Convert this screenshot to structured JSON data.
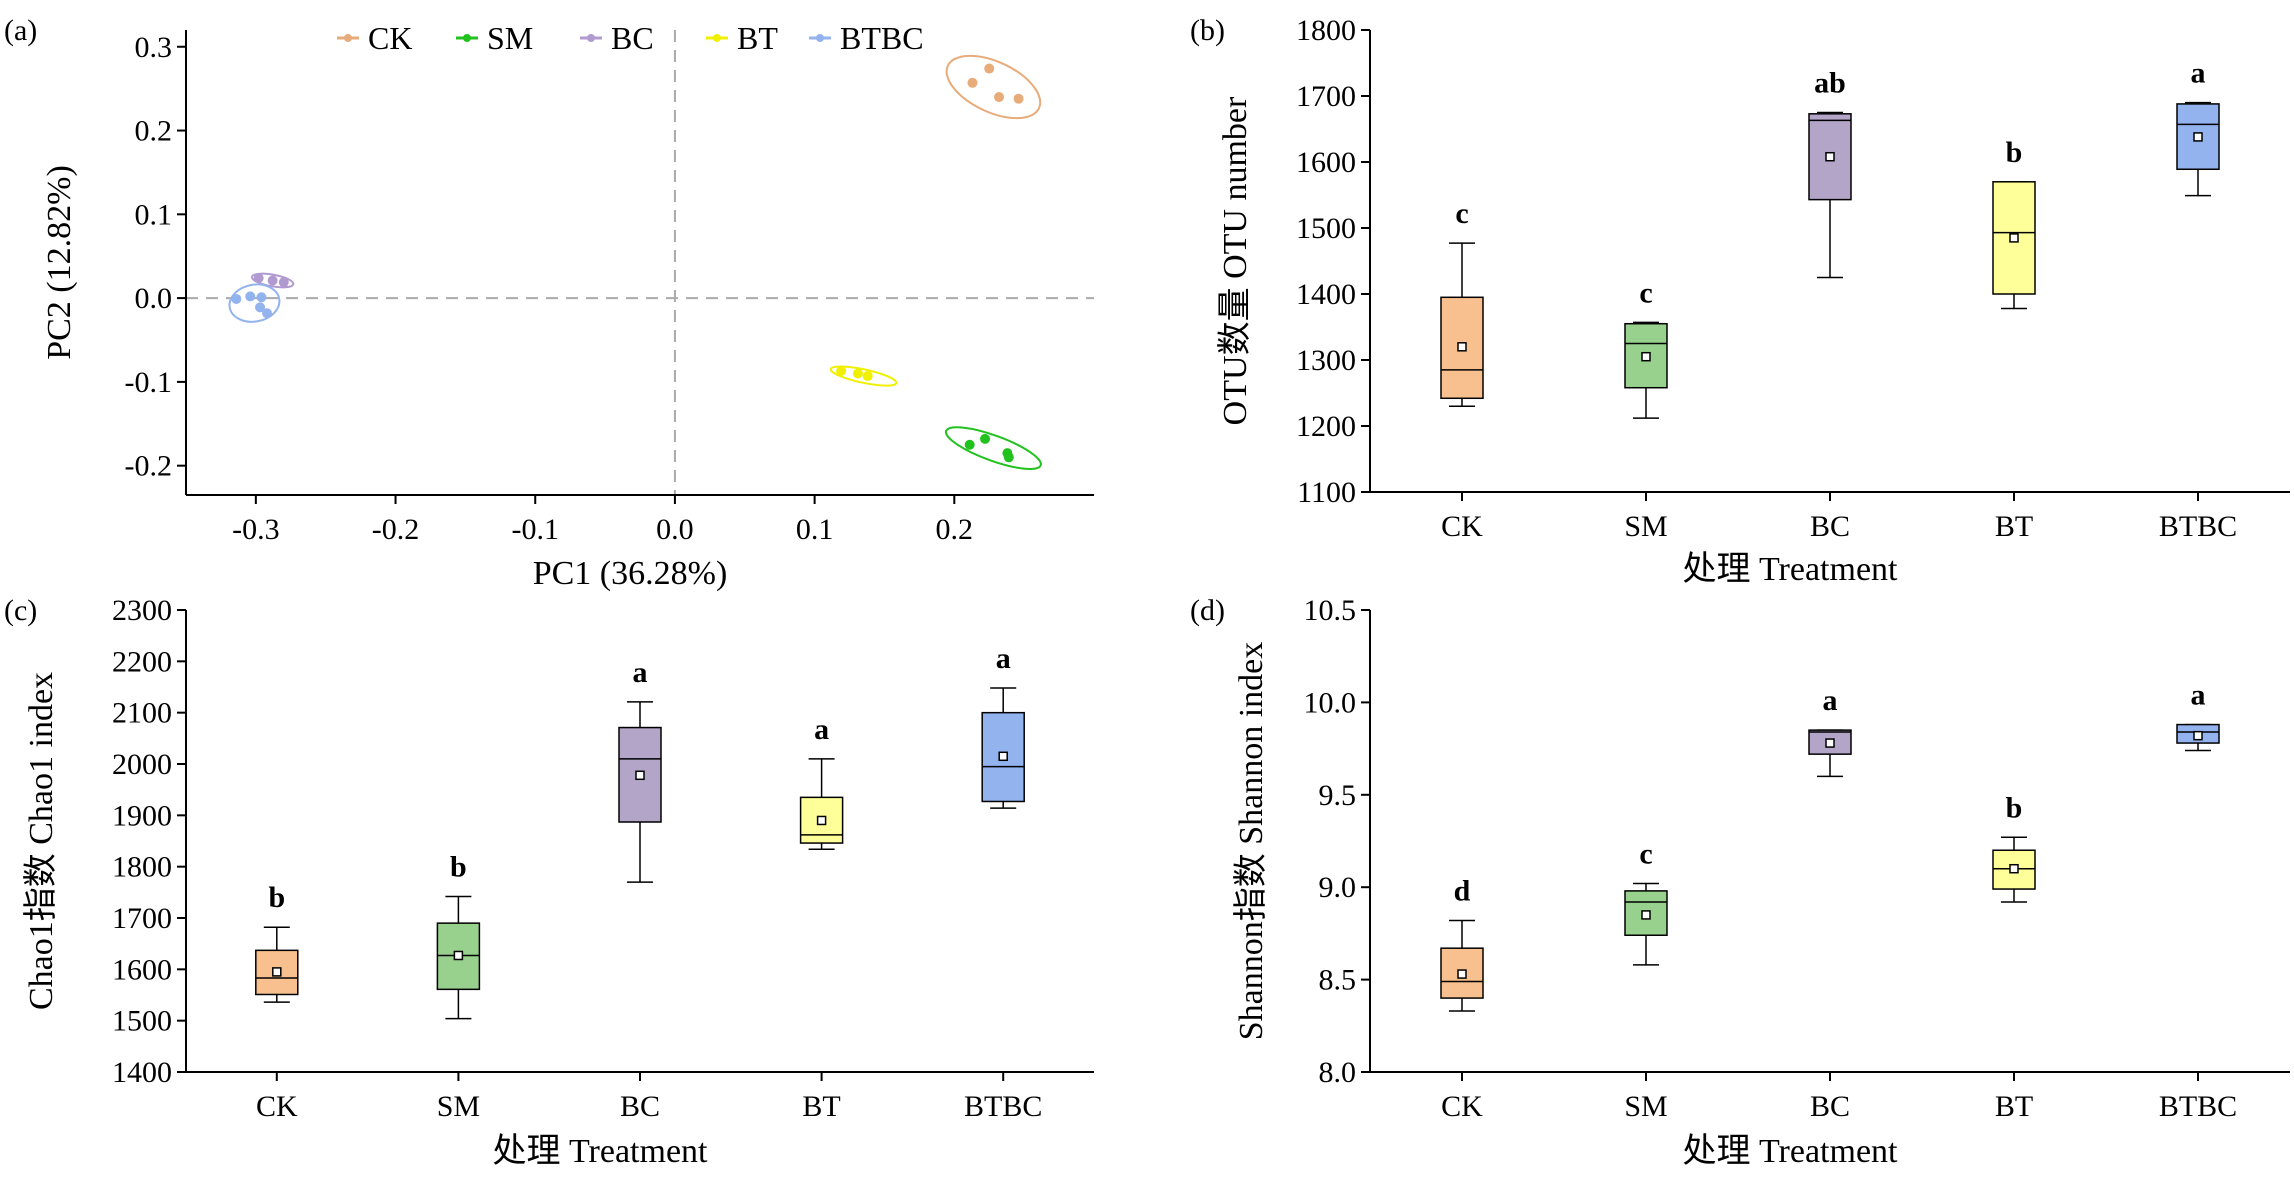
{
  "colors": {
    "CK": "#f7c08e",
    "SM": "#97d18d",
    "BC": "#b3a5c8",
    "BT": "#ffff99",
    "BTBC": "#93b3ef",
    "pca_points": {
      "CK": "#e8ab7a",
      "SM": "#22c21e",
      "BC": "#b09ad0",
      "BT": "#f0f000",
      "BTBC": "#93b3ef"
    }
  },
  "chart_data": [
    {
      "panel": "(a)",
      "type": "scatter",
      "xlabel": "PC1 (36.28%)",
      "ylabel": "PC2 (12.82%)",
      "xlim": [
        -0.35,
        0.3
      ],
      "ylim": [
        -0.235,
        0.32
      ],
      "xticks": [
        -0.3,
        -0.2,
        -0.1,
        0.0,
        0.1,
        0.2
      ],
      "xtick_labels": [
        "-0.3",
        "-0.2",
        "-0.1",
        "0.0",
        "0.1",
        "0.2"
      ],
      "yticks": [
        -0.2,
        -0.1,
        0.0,
        0.1,
        0.2,
        0.3
      ],
      "ytick_labels": [
        "-0.2",
        "-0.1",
        "0.0",
        "0.1",
        "0.2",
        "0.3"
      ],
      "legend": [
        "CK",
        "SM",
        "BC",
        "BT",
        "BTBC"
      ],
      "legend_position": "top",
      "series": [
        {
          "name": "CK",
          "points": [
            [
              0.213,
              0.257
            ],
            [
              0.225,
              0.274
            ],
            [
              0.232,
              0.24
            ],
            [
              0.246,
              0.238
            ]
          ],
          "ellipse": {
            "cx": 0.228,
            "cy": 0.252,
            "rx": 0.036,
            "ry": 0.03
          }
        },
        {
          "name": "SM",
          "points": [
            [
              0.211,
              -0.175
            ],
            [
              0.222,
              -0.168
            ],
            [
              0.238,
              -0.185
            ],
            [
              0.239,
              -0.19
            ]
          ],
          "ellipse": {
            "cx": 0.228,
            "cy": -0.179,
            "rx": 0.036,
            "ry": 0.015
          }
        },
        {
          "name": "BC",
          "points": [
            [
              -0.298,
              0.024
            ],
            [
              -0.288,
              0.021
            ],
            [
              -0.28,
              0.019
            ]
          ],
          "ellipse": {
            "cx": -0.288,
            "cy": 0.021,
            "rx": 0.015,
            "ry": 0.007
          }
        },
        {
          "name": "BT",
          "points": [
            [
              0.119,
              -0.087
            ],
            [
              0.131,
              -0.09
            ],
            [
              0.138,
              -0.093
            ]
          ],
          "ellipse": {
            "cx": 0.135,
            "cy": -0.093,
            "rx": 0.024,
            "ry": 0.008
          }
        },
        {
          "name": "BTBC",
          "points": [
            [
              -0.314,
              -0.001
            ],
            [
              -0.304,
              0.002
            ],
            [
              -0.297,
              -0.011
            ],
            [
              -0.292,
              -0.018
            ],
            [
              -0.296,
              0.001
            ]
          ],
          "ellipse": {
            "cx": -0.301,
            "cy": -0.006,
            "rx": 0.018,
            "ry": 0.022
          }
        }
      ]
    },
    {
      "panel": "(b)",
      "type": "box",
      "xlabel": "处理 Treatment",
      "ylabel": "OTU数量 OTU number",
      "ylim": [
        1100,
        1800
      ],
      "yticks": [
        1100,
        1200,
        1300,
        1400,
        1500,
        1600,
        1700,
        1800
      ],
      "categories": [
        "CK",
        "SM",
        "BC",
        "BT",
        "BTBC"
      ],
      "boxes": [
        {
          "min": 1230,
          "q1": 1242,
          "median": 1285,
          "q3": 1395,
          "max": 1477,
          "mean": 1320,
          "letter": "c"
        },
        {
          "min": 1212,
          "q1": 1258,
          "median": 1325,
          "q3": 1355,
          "max": 1357,
          "mean": 1305,
          "letter": "c"
        },
        {
          "min": 1425,
          "q1": 1543,
          "median": 1663,
          "q3": 1673,
          "max": 1675,
          "mean": 1608,
          "letter": "ab"
        },
        {
          "min": 1378,
          "q1": 1400,
          "median": 1493,
          "q3": 1570,
          "max": 1570,
          "mean": 1485,
          "letter": "b"
        },
        {
          "min": 1549,
          "q1": 1589,
          "median": 1657,
          "q3": 1688,
          "max": 1690,
          "mean": 1638,
          "letter": "a"
        }
      ]
    },
    {
      "panel": "(c)",
      "type": "box",
      "xlabel": "处理 Treatment",
      "ylabel": "Chao1指数 Chao1 index",
      "ylim": [
        1400,
        2300
      ],
      "yticks": [
        1400,
        1500,
        1600,
        1700,
        1800,
        1900,
        2000,
        2100,
        2200,
        2300
      ],
      "categories": [
        "CK",
        "SM",
        "BC",
        "BT",
        "BTBC"
      ],
      "boxes": [
        {
          "min": 1536,
          "q1": 1551,
          "median": 1583,
          "q3": 1637,
          "max": 1682,
          "mean": 1595,
          "letter": "b"
        },
        {
          "min": 1504,
          "q1": 1561,
          "median": 1627,
          "q3": 1690,
          "max": 1742,
          "mean": 1627,
          "letter": "b"
        },
        {
          "min": 1770,
          "q1": 1887,
          "median": 2010,
          "q3": 2071,
          "max": 2121,
          "mean": 1978,
          "letter": "a"
        },
        {
          "min": 1834,
          "q1": 1846,
          "median": 1862,
          "q3": 1935,
          "max": 2010,
          "mean": 1890,
          "letter": "a"
        },
        {
          "min": 1914,
          "q1": 1927,
          "median": 1995,
          "q3": 2100,
          "max": 2148,
          "mean": 2015,
          "letter": "a"
        }
      ]
    },
    {
      "panel": "(d)",
      "type": "box",
      "xlabel": "处理 Treatment",
      "ylabel": "Shannon指数 Shannon index",
      "ylim": [
        8.0,
        10.5
      ],
      "yticks": [
        8.0,
        8.5,
        9.0,
        9.5,
        10.0,
        10.5
      ],
      "ytick_labels": [
        "8.0",
        "8.5",
        "9.0",
        "9.5",
        "10.0",
        "10.5"
      ],
      "categories": [
        "CK",
        "SM",
        "BC",
        "BT",
        "BTBC"
      ],
      "boxes": [
        {
          "min": 8.33,
          "q1": 8.4,
          "median": 8.49,
          "q3": 8.67,
          "max": 8.82,
          "mean": 8.53,
          "letter": "d"
        },
        {
          "min": 8.58,
          "q1": 8.74,
          "median": 8.92,
          "q3": 8.98,
          "max": 9.02,
          "mean": 8.85,
          "letter": "c"
        },
        {
          "min": 9.6,
          "q1": 9.72,
          "median": 9.84,
          "q3": 9.85,
          "max": 9.85,
          "mean": 9.78,
          "letter": "a"
        },
        {
          "min": 8.92,
          "q1": 8.99,
          "median": 9.1,
          "q3": 9.2,
          "max": 9.27,
          "mean": 9.1,
          "letter": "b"
        },
        {
          "min": 9.74,
          "q1": 9.78,
          "median": 9.84,
          "q3": 9.88,
          "max": 9.88,
          "mean": 9.82,
          "letter": "a"
        }
      ]
    }
  ]
}
